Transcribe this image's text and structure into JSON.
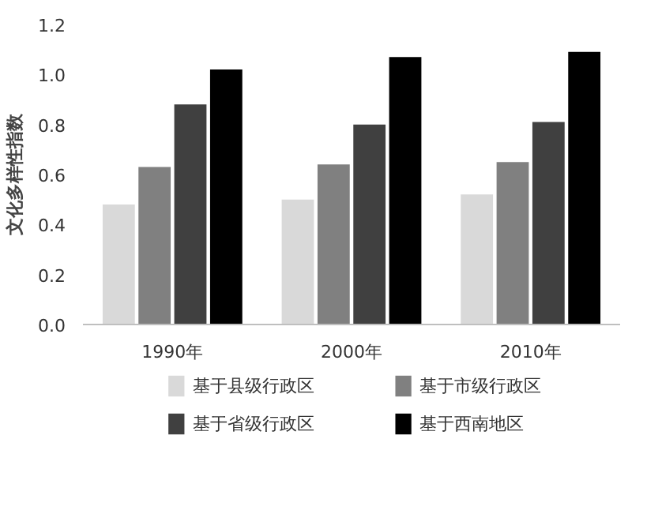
{
  "chart_data": {
    "type": "bar",
    "ylabel": "文化多样性指数",
    "categories": [
      "1990年",
      "2000年",
      "2010年"
    ],
    "series": [
      {
        "name": "基于县级行政区",
        "color": "#d9d9d9",
        "values": [
          0.48,
          0.5,
          0.52
        ]
      },
      {
        "name": "基于市级行政区",
        "color": "#808080",
        "values": [
          0.63,
          0.64,
          0.65
        ]
      },
      {
        "name": "基于省级行政区",
        "color": "#404040",
        "values": [
          0.88,
          0.8,
          0.81
        ]
      },
      {
        "name": "基于西南地区",
        "color": "#000000",
        "values": [
          1.02,
          1.07,
          1.09
        ]
      }
    ],
    "ylim": [
      0,
      1.2
    ],
    "yticks": [
      {
        "value": 0,
        "label": "0.0"
      },
      {
        "value": 0.2,
        "label": "0.2"
      },
      {
        "value": 0.4,
        "label": "0.4"
      },
      {
        "value": 0.6,
        "label": "0.6"
      },
      {
        "value": 0.8,
        "label": "0.8"
      },
      {
        "value": 1.0,
        "label": "1.0"
      },
      {
        "value": 1.2,
        "label": "1.2"
      }
    ],
    "grid": false,
    "legend": "bottom"
  }
}
